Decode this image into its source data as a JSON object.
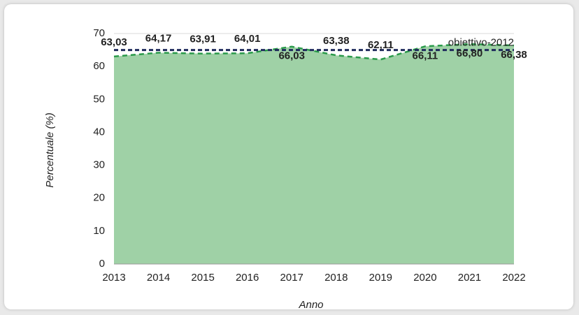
{
  "chart_data": {
    "type": "area",
    "x_label": "Anno",
    "y_label": "Percentuale (%)",
    "categories": [
      "2013",
      "2014",
      "2015",
      "2016",
      "2017",
      "2018",
      "2019",
      "2020",
      "2021",
      "2022"
    ],
    "values": [
      63.03,
      64.17,
      63.91,
      64.01,
      66.03,
      63.38,
      62.11,
      66.11,
      66.8,
      66.38
    ],
    "value_labels": [
      "63,03",
      "64,17",
      "63,91",
      "64,01",
      "66,03",
      "63,38",
      "62,11",
      "66,11",
      "66,80",
      "66,38"
    ],
    "color": "#9fd1a6",
    "line_color": "#2a9a4a",
    "label_color": "#1e8a3e",
    "reference": {
      "label": "obiettivo-2012",
      "value": 65,
      "color": "#1f2a5c"
    },
    "ylim": [
      0,
      70
    ],
    "yticks": [
      0,
      10,
      20,
      30,
      40,
      50,
      60,
      70
    ],
    "grid": true
  }
}
